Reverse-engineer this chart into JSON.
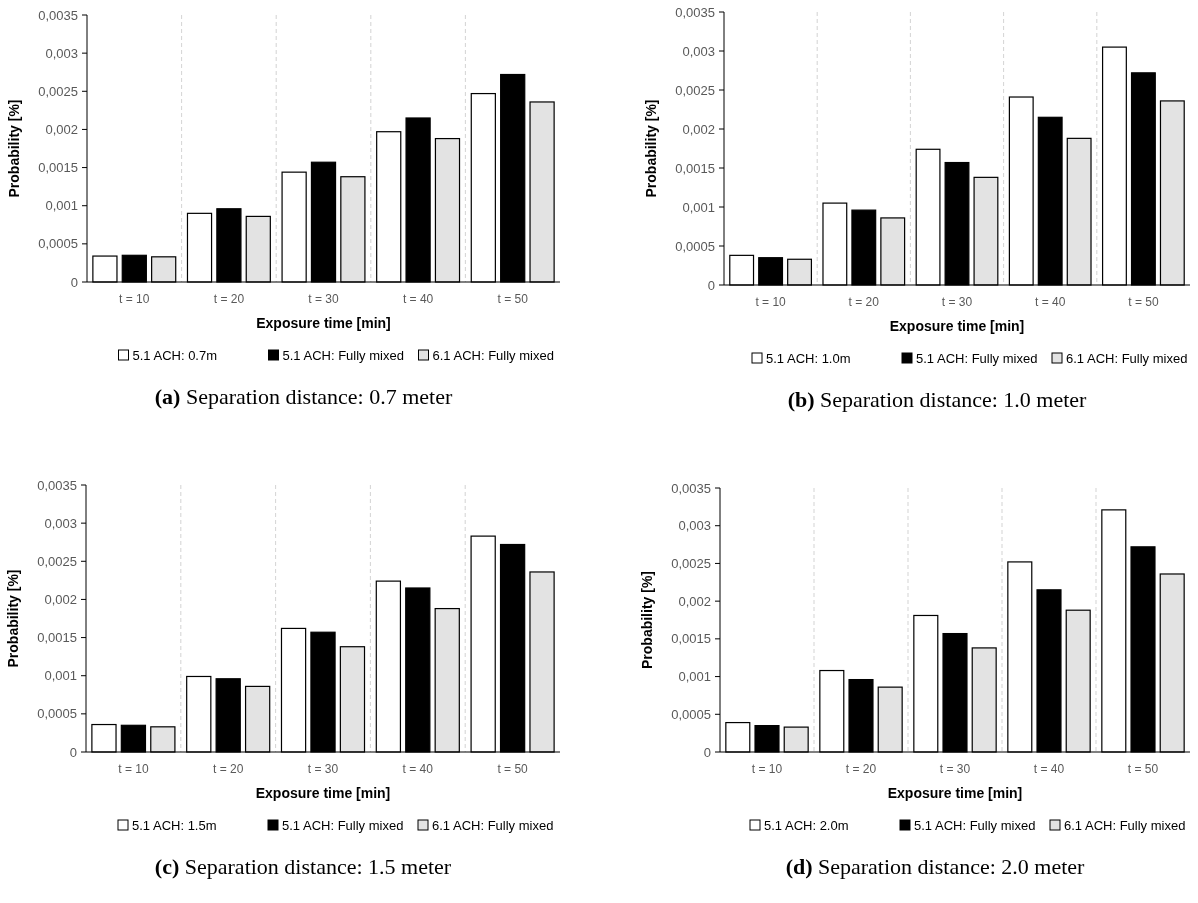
{
  "chart_data": [
    {
      "type": "bar",
      "title": "(a) Separation distance: 0.7 meter",
      "xlabel": "Exposure time [min]",
      "ylabel": "Probability [%]",
      "categories": [
        "t = 10",
        "t = 20",
        "t = 30",
        "t = 40",
        "t = 50"
      ],
      "series": [
        {
          "name": "5.1 ACH: 0.7m",
          "color": "#ffffff",
          "values": [
            0.00034,
            0.0009,
            0.00144,
            0.00197,
            0.00247
          ]
        },
        {
          "name": "5.1 ACH: Fully mixed",
          "color": "#000000",
          "values": [
            0.00035,
            0.00096,
            0.00157,
            0.00215,
            0.00272
          ]
        },
        {
          "name": "6.1 ACH: Fully mixed",
          "color": "#e3e3e3",
          "values": [
            0.00033,
            0.00086,
            0.00138,
            0.00188,
            0.00236
          ]
        }
      ],
      "ylim": [
        0,
        0.0035
      ],
      "yticks": [
        {
          "value": 0,
          "label": "0"
        },
        {
          "value": 0.0005,
          "label": "0,0005"
        },
        {
          "value": 0.001,
          "label": "0,001"
        },
        {
          "value": 0.0015,
          "label": "0,0015"
        },
        {
          "value": 0.002,
          "label": "0,002"
        },
        {
          "value": 0.0025,
          "label": "0,0025"
        },
        {
          "value": 0.003,
          "label": "0,003"
        },
        {
          "value": 0.0035,
          "label": "0,0035"
        }
      ],
      "grid": "x",
      "legend": "bottom"
    },
    {
      "type": "bar",
      "title": "(b) Separation distance: 1.0 meter",
      "xlabel": "Exposure time [min]",
      "ylabel": "Probability [%]",
      "categories": [
        "t = 10",
        "t = 20",
        "t = 30",
        "t = 40",
        "t = 50"
      ],
      "series": [
        {
          "name": "5.1 ACH: 1.0m",
          "color": "#ffffff",
          "values": [
            0.00038,
            0.00105,
            0.00174,
            0.00241,
            0.00305
          ]
        },
        {
          "name": "5.1 ACH: Fully mixed",
          "color": "#000000",
          "values": [
            0.00035,
            0.00096,
            0.00157,
            0.00215,
            0.00272
          ]
        },
        {
          "name": "6.1 ACH: Fully mixed",
          "color": "#e3e3e3",
          "values": [
            0.00033,
            0.00086,
            0.00138,
            0.00188,
            0.00236
          ]
        }
      ],
      "ylim": [
        0,
        0.0035
      ],
      "yticks": [
        {
          "value": 0,
          "label": "0"
        },
        {
          "value": 0.0005,
          "label": "0,0005"
        },
        {
          "value": 0.001,
          "label": "0,001"
        },
        {
          "value": 0.0015,
          "label": "0,0015"
        },
        {
          "value": 0.002,
          "label": "0,002"
        },
        {
          "value": 0.0025,
          "label": "0,0025"
        },
        {
          "value": 0.003,
          "label": "0,003"
        },
        {
          "value": 0.0035,
          "label": "0,0035"
        }
      ],
      "grid": "x",
      "legend": "bottom"
    },
    {
      "type": "bar",
      "title": "(c) Separation distance: 1.5 meter",
      "xlabel": "Exposure time [min]",
      "ylabel": "Probability [%]",
      "categories": [
        "t = 10",
        "t = 20",
        "t = 30",
        "t = 40",
        "t = 50"
      ],
      "series": [
        {
          "name": "5.1 ACH: 1.5m",
          "color": "#ffffff",
          "values": [
            0.00036,
            0.00099,
            0.00162,
            0.00224,
            0.00283
          ]
        },
        {
          "name": "5.1 ACH: Fully mixed",
          "color": "#000000",
          "values": [
            0.00035,
            0.00096,
            0.00157,
            0.00215,
            0.00272
          ]
        },
        {
          "name": "6.1 ACH: Fully mixed",
          "color": "#e3e3e3",
          "values": [
            0.00033,
            0.00086,
            0.00138,
            0.00188,
            0.00236
          ]
        }
      ],
      "ylim": [
        0,
        0.0035
      ],
      "yticks": [
        {
          "value": 0,
          "label": "0"
        },
        {
          "value": 0.0005,
          "label": "0,0005"
        },
        {
          "value": 0.001,
          "label": "0,001"
        },
        {
          "value": 0.0015,
          "label": "0,0015"
        },
        {
          "value": 0.002,
          "label": "0,002"
        },
        {
          "value": 0.0025,
          "label": "0,0025"
        },
        {
          "value": 0.003,
          "label": "0,003"
        },
        {
          "value": 0.0035,
          "label": "0,0035"
        }
      ],
      "grid": "x",
      "legend": "bottom"
    },
    {
      "type": "bar",
      "title": "(d) Separation distance: 2.0 meter",
      "xlabel": "Exposure time [min]",
      "ylabel": "Probability [%]",
      "categories": [
        "t = 10",
        "t = 20",
        "t = 30",
        "t = 40",
        "t = 50"
      ],
      "series": [
        {
          "name": "5.1 ACH: 2.0m",
          "color": "#ffffff",
          "values": [
            0.00039,
            0.00108,
            0.00181,
            0.00252,
            0.00321
          ]
        },
        {
          "name": "5.1 ACH: Fully mixed",
          "color": "#000000",
          "values": [
            0.00035,
            0.00096,
            0.00157,
            0.00215,
            0.00272
          ]
        },
        {
          "name": "6.1 ACH: Fully mixed",
          "color": "#e3e3e3",
          "values": [
            0.00033,
            0.00086,
            0.00138,
            0.00188,
            0.00236
          ]
        }
      ],
      "ylim": [
        0,
        0.0035
      ],
      "yticks": [
        {
          "value": 0,
          "label": "0"
        },
        {
          "value": 0.0005,
          "label": "0,0005"
        },
        {
          "value": 0.001,
          "label": "0,001"
        },
        {
          "value": 0.0015,
          "label": "0,0015"
        },
        {
          "value": 0.002,
          "label": "0,002"
        },
        {
          "value": 0.0025,
          "label": "0,0025"
        },
        {
          "value": 0.003,
          "label": "0,003"
        },
        {
          "value": 0.0035,
          "label": "0,0035"
        }
      ],
      "grid": "x",
      "legend": "bottom"
    }
  ]
}
